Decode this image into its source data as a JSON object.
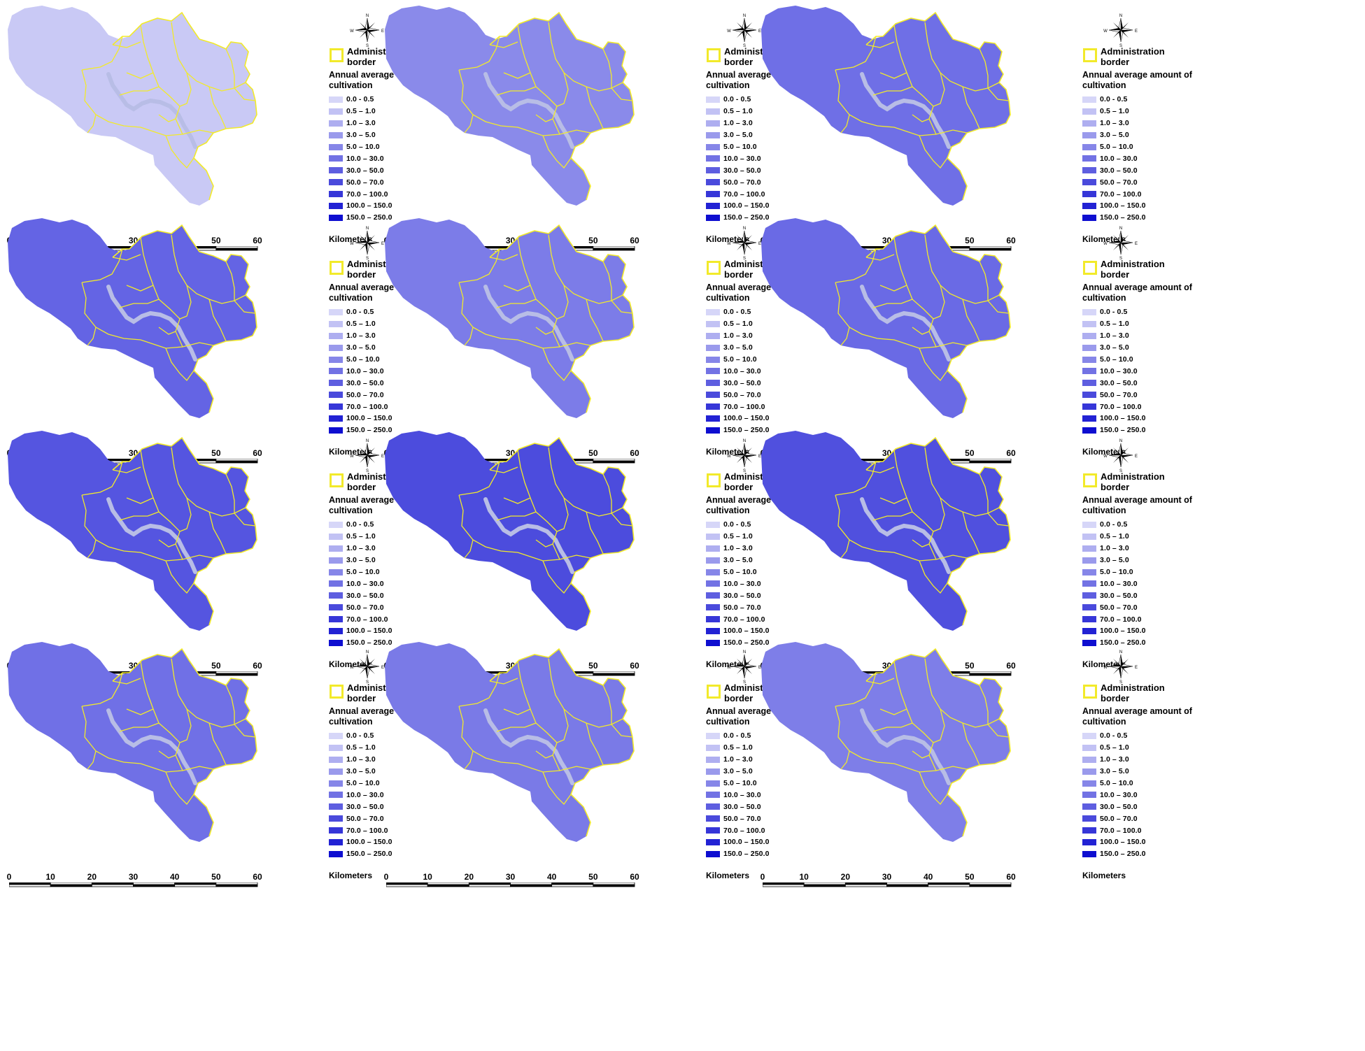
{
  "legend": {
    "admin_label": "Administration border",
    "title": "Annual average amount of cultivation",
    "classes": [
      {
        "label": "0.0 - 0.5",
        "color": "#d6d6f8"
      },
      {
        "label": "0.5 – 1.0",
        "color": "#c2c2f4"
      },
      {
        "label": "1.0 – 3.0",
        "color": "#aeaef0"
      },
      {
        "label": "3.0 – 5.0",
        "color": "#9a9aec"
      },
      {
        "label": "5.0 – 10.0",
        "color": "#8686e8"
      },
      {
        "label": "10.0 – 30.0",
        "color": "#7272e4"
      },
      {
        "label": "30.0 – 50.0",
        "color": "#5e5ee0"
      },
      {
        "label": "50.0 – 70.0",
        "color": "#4a4adc"
      },
      {
        "label": "70.0 – 100.0",
        "color": "#3636d8"
      },
      {
        "label": "100.0 – 150.0",
        "color": "#2222d4"
      },
      {
        "label": "150.0 – 250.0",
        "color": "#0e0ed0"
      }
    ]
  },
  "compass": {
    "n": "N",
    "s": "S",
    "e": "E",
    "w": "W"
  },
  "scale": {
    "ticks": [
      "0",
      "10",
      "20",
      "30",
      "40",
      "50",
      "60"
    ],
    "unit": "Kilometers"
  },
  "colors": {
    "admin_border": "#f2ea2a",
    "river": "#b8bde6"
  },
  "panels": [
    {
      "fill": "#c9c9f5"
    },
    {
      "fill": "#8a8aea"
    },
    {
      "fill": "#6f6fe6"
    },
    {
      "fill": "#6464e4"
    },
    {
      "fill": "#7c7ce8"
    },
    {
      "fill": "#6a6ae5"
    },
    {
      "fill": "#5555e0"
    },
    {
      "fill": "#4c4cdd"
    },
    {
      "fill": "#5050de"
    },
    {
      "fill": "#7070e6"
    },
    {
      "fill": "#7a7ae7"
    },
    {
      "fill": "#7e7ee8"
    }
  ]
}
